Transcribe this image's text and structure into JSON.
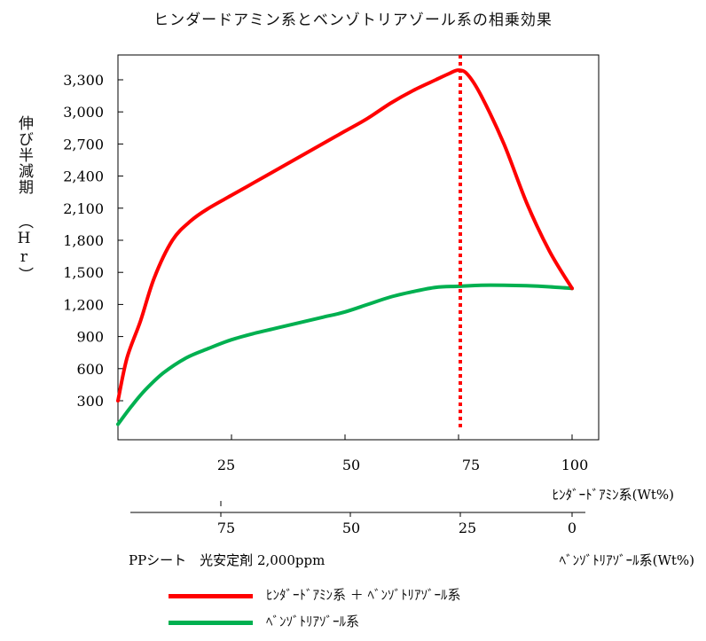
{
  "title": "ヒンダードアミン系とベンゾトリアゾール系の相乗効果",
  "y_axis_label": "伸び半減期 （Hr）",
  "pp_note": "PPシート　光安定剤 2,000ppm",
  "x_axis_top": {
    "label": "ﾋﾝﾀﾞｰﾄﾞｱﾐﾝ系(Wt%)",
    "ticks": [
      "25",
      "50",
      "75",
      "100"
    ]
  },
  "x_axis_bottom": {
    "label": "ﾍﾞﾝｿﾞﾄﾘｱｿﾞｰﾙ系(Wt%)",
    "ticks": [
      "75",
      "50",
      "25",
      "0"
    ]
  },
  "legend": [
    {
      "label": "ﾋﾝﾀﾞｰﾄﾞｱﾐﾝ系 ＋ ﾍﾞﾝｿﾞﾄﾘｱｿﾞｰﾙ系",
      "color": "#ff0000"
    },
    {
      "label": "ﾍﾞﾝｿﾞﾄﾘｱｿﾞｰﾙ系",
      "color": "#00b050"
    }
  ],
  "chart_data": {
    "type": "line",
    "title": "ヒンダードアミン系とベンゾトリアゾール系の相乗効果",
    "xlabel": "ﾋﾝﾀﾞｰﾄﾞｱﾐﾝ系(Wt%)",
    "xlabel_secondary": "ﾍﾞﾝｿﾞﾄﾘｱｿﾞｰﾙ系(Wt%)",
    "ylabel": "伸び半減期 （Hr）",
    "xlim": [
      0,
      105
    ],
    "ylim": [
      0,
      3500
    ],
    "x_ticks": [
      25,
      50,
      75,
      100
    ],
    "secondary_x_ticks": [
      75,
      50,
      25,
      0
    ],
    "y_ticks": [
      300,
      600,
      900,
      1200,
      1500,
      1800,
      2100,
      2400,
      2700,
      3000,
      3300
    ],
    "y_tick_labels": [
      "300",
      "600",
      "900",
      "1,200",
      "1,500",
      "1,800",
      "2,100",
      "2,400",
      "2,700",
      "3,000",
      "3,300"
    ],
    "grid": false,
    "vertical_marker": {
      "x": 75,
      "color": "#ff0000",
      "style": "dotted"
    },
    "series": [
      {
        "name": "ﾋﾝﾀﾞｰﾄﾞｱﾐﾝ系 ＋ ﾍﾞﾝｿﾞﾄﾘｱｿﾞｰﾙ系",
        "color": "#ff0000",
        "x": [
          0,
          2,
          5,
          8,
          12,
          16,
          20,
          25,
          30,
          35,
          40,
          45,
          50,
          55,
          60,
          65,
          70,
          73,
          75,
          77,
          80,
          85,
          90,
          95,
          100
        ],
        "y": [
          300,
          700,
          1050,
          1450,
          1800,
          1980,
          2100,
          2220,
          2340,
          2460,
          2580,
          2700,
          2820,
          2940,
          3080,
          3200,
          3300,
          3360,
          3390,
          3350,
          3150,
          2700,
          2150,
          1700,
          1350
        ]
      },
      {
        "name": "ﾍﾞﾝｿﾞﾄﾘｱｿﾞｰﾙ系",
        "color": "#00b050",
        "x": [
          0,
          3,
          6,
          10,
          15,
          20,
          25,
          30,
          35,
          40,
          45,
          50,
          55,
          60,
          65,
          70,
          75,
          80,
          85,
          90,
          95,
          100
        ],
        "y": [
          80,
          250,
          400,
          560,
          700,
          790,
          870,
          930,
          980,
          1030,
          1080,
          1130,
          1200,
          1270,
          1320,
          1360,
          1370,
          1380,
          1380,
          1375,
          1365,
          1350
        ]
      }
    ]
  }
}
